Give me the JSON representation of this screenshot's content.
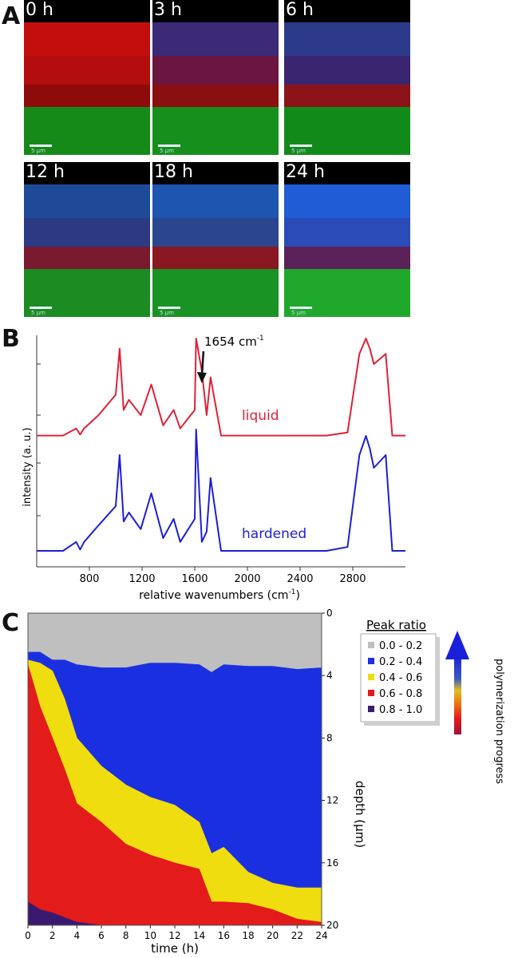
{
  "panels": {
    "a": "A",
    "b": "B",
    "c": "C"
  },
  "panel_a": {
    "tiles": [
      {
        "time": "0 h",
        "scale": "5 µm",
        "layers": [
          "#000000",
          "#c40e0e",
          "#b30d0d",
          "#8e0b0b",
          "#168a18"
        ]
      },
      {
        "time": "3 h",
        "scale": "5 µm",
        "layers": [
          "#000000",
          "#3a2a78",
          "#6a1640",
          "#8a0f10",
          "#178f1c"
        ]
      },
      {
        "time": "6 h",
        "scale": "5 µm",
        "layers": [
          "#000000",
          "#2d3a8a",
          "#3a2670",
          "#8c1418",
          "#128a1a"
        ]
      },
      {
        "time": "12 h",
        "scale": "5 µm",
        "layers": [
          "#000000",
          "#1f4a98",
          "#2b3a82",
          "#7a1a30",
          "#1b8c22"
        ]
      },
      {
        "time": "18 h",
        "scale": "5 µm",
        "layers": [
          "#000000",
          "#1e55b0",
          "#2b468e",
          "#8a1822",
          "#199324"
        ]
      },
      {
        "time": "24 h",
        "scale": "5 µm",
        "layers": [
          "#000000",
          "#1f5cd6",
          "#2a4bb8",
          "#5a2258",
          "#1fa82c"
        ]
      }
    ]
  },
  "panel_b": {
    "annotation": "1654 cm",
    "annotation_sup": "-1",
    "xlabel": "relative wavenumbers (cm",
    "xlabel_sup": "-1",
    "xlabel_end": ")",
    "ylabel": "intensity (a. u.)",
    "liquid_label": "liquid",
    "hardened_label": "hardened",
    "liquid_color": "#e0213a",
    "hardened_color": "#1e1ed6"
  },
  "panel_c": {
    "xlabel": "time (h)",
    "ylabel": "depth (µm)",
    "legend_title": "Peak ratio",
    "legend": [
      {
        "label": "0.0 - 0.2",
        "color": "#bfbfbf"
      },
      {
        "label": "0.2 - 0.4",
        "color": "#1a30e0"
      },
      {
        "label": "0.4 - 0.6",
        "color": "#f0dd10"
      },
      {
        "label": "0.6 - 0.8",
        "color": "#e31b1b"
      },
      {
        "label": "0.8 - 1.0",
        "color": "#3a1a70"
      }
    ],
    "arrow_label": "polymerization progress"
  },
  "chart_data": [
    {
      "type": "line",
      "title": "",
      "xlabel": "relative wavenumbers (cm-1)",
      "ylabel": "intensity (a. u.)",
      "xlim": [
        400,
        3200
      ],
      "xticks": [
        800,
        1200,
        1600,
        2000,
        2400,
        2800
      ],
      "grid": false,
      "series": [
        {
          "name": "liquid",
          "x": [
            400,
            600,
            700,
            730,
            760,
            870,
            1000,
            1030,
            1060,
            1100,
            1190,
            1270,
            1360,
            1440,
            1490,
            1600,
            1610,
            1654,
            1690,
            1720,
            1800,
            2000,
            2400,
            2600,
            2760,
            2850,
            2900,
            2930,
            2960,
            3050,
            3100,
            3200
          ],
          "y": [
            0.05,
            0.05,
            0.12,
            0.06,
            0.12,
            0.25,
            0.45,
            0.9,
            0.3,
            0.4,
            0.25,
            0.55,
            0.15,
            0.3,
            0.12,
            0.3,
            1.0,
            0.68,
            0.25,
            0.62,
            0.05,
            0.05,
            0.05,
            0.05,
            0.08,
            0.85,
            1.0,
            0.9,
            0.75,
            0.85,
            0.05,
            0.05
          ]
        },
        {
          "name": "hardened",
          "x": [
            400,
            600,
            700,
            730,
            760,
            870,
            1000,
            1030,
            1060,
            1100,
            1190,
            1270,
            1360,
            1440,
            1490,
            1600,
            1610,
            1654,
            1690,
            1720,
            1800,
            2000,
            2400,
            2600,
            2760,
            2850,
            2900,
            2930,
            2960,
            3050,
            3100,
            3200
          ],
          "y": [
            0.05,
            0.05,
            0.12,
            0.06,
            0.12,
            0.25,
            0.4,
            0.8,
            0.28,
            0.35,
            0.22,
            0.5,
            0.15,
            0.3,
            0.12,
            0.3,
            1.0,
            0.12,
            0.2,
            0.62,
            0.05,
            0.05,
            0.05,
            0.05,
            0.08,
            0.8,
            0.95,
            0.85,
            0.7,
            0.8,
            0.05,
            0.05
          ]
        }
      ]
    },
    {
      "type": "area",
      "title": "",
      "xlabel": "time (h)",
      "ylabel": "depth (µm)",
      "xlim": [
        0,
        24
      ],
      "ylim": [
        0,
        20
      ],
      "xticks": [
        0,
        2,
        4,
        6,
        8,
        10,
        12,
        14,
        16,
        18,
        20,
        22,
        24
      ],
      "yticks": [
        0,
        4,
        8,
        12,
        16,
        20
      ],
      "boundaries_x": [
        0,
        1,
        2,
        3,
        4,
        6,
        8,
        10,
        12,
        14,
        15,
        16,
        18,
        20,
        22,
        24
      ],
      "series": [
        {
          "name": "0.0 - 0.2",
          "values": [
            2.5,
            2.5,
            3.0,
            3.0,
            3.3,
            3.5,
            3.5,
            3.2,
            3.2,
            3.3,
            3.8,
            3.3,
            3.4,
            3.4,
            3.6,
            3.5
          ]
        },
        {
          "name": "0.2 - 0.4",
          "values": [
            3.0,
            3.2,
            3.7,
            5.5,
            8.0,
            9.8,
            11.0,
            11.8,
            12.3,
            13.4,
            15.4,
            15.0,
            16.6,
            17.3,
            17.6,
            17.6
          ]
        },
        {
          "name": "0.4 - 0.6",
          "values": [
            3.3,
            6.0,
            8.0,
            10.0,
            12.2,
            13.4,
            14.8,
            15.5,
            16.0,
            16.4,
            18.5,
            18.5,
            18.6,
            19.0,
            19.6,
            19.8
          ]
        },
        {
          "name": "0.6 - 0.8",
          "values": [
            18.5,
            19.0,
            19.2,
            19.5,
            19.8,
            20.0,
            20.0,
            20.0,
            20.0,
            20.0,
            20.0,
            20.0,
            20.0,
            20.0,
            20.0,
            20.0
          ]
        },
        {
          "name": "0.8 - 1.0",
          "values": [
            20,
            20,
            20,
            20,
            20,
            20,
            20,
            20,
            20,
            20,
            20,
            20,
            20,
            20,
            20,
            20
          ]
        }
      ]
    }
  ]
}
